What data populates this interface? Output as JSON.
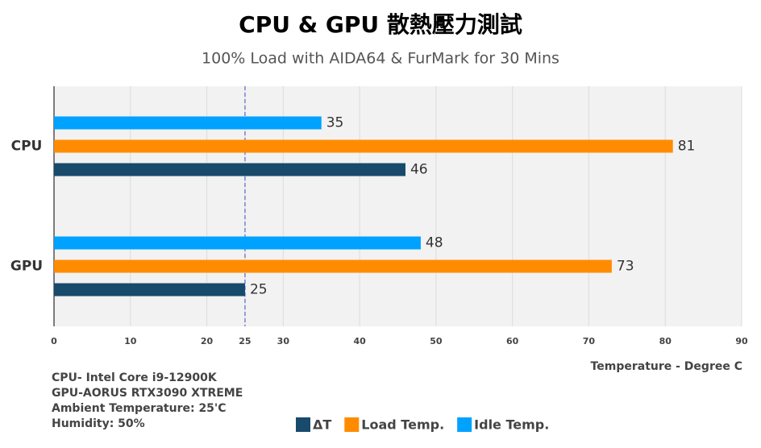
{
  "chart_data": {
    "type": "hbar",
    "title": "CPU & GPU 散熱壓力測試",
    "subtitle": "100% Load with AIDA64 & FurMark for 30 Mins",
    "x_label": "Temperature - Degree C",
    "categories": [
      "CPU",
      "GPU"
    ],
    "series": [
      {
        "name": "Idle Temp.",
        "color": "#00a2ff",
        "values": [
          35,
          48
        ]
      },
      {
        "name": "Load Temp.",
        "color": "#ff8c00",
        "values": [
          81,
          73
        ]
      },
      {
        "name": "ΔT",
        "color": "#174a6b",
        "values": [
          46,
          25
        ]
      }
    ],
    "xlim": [
      0,
      90
    ],
    "xticks": [
      0,
      10,
      20,
      25,
      30,
      40,
      50,
      60,
      70,
      80,
      90
    ],
    "reference_x": 25,
    "grid": true,
    "notes": [
      "CPU- Intel Core i9-12900K",
      "GPU-AORUS RTX3090 XTREME",
      "Ambient Temperature: 25'C",
      "Humidity: 50%"
    ]
  }
}
